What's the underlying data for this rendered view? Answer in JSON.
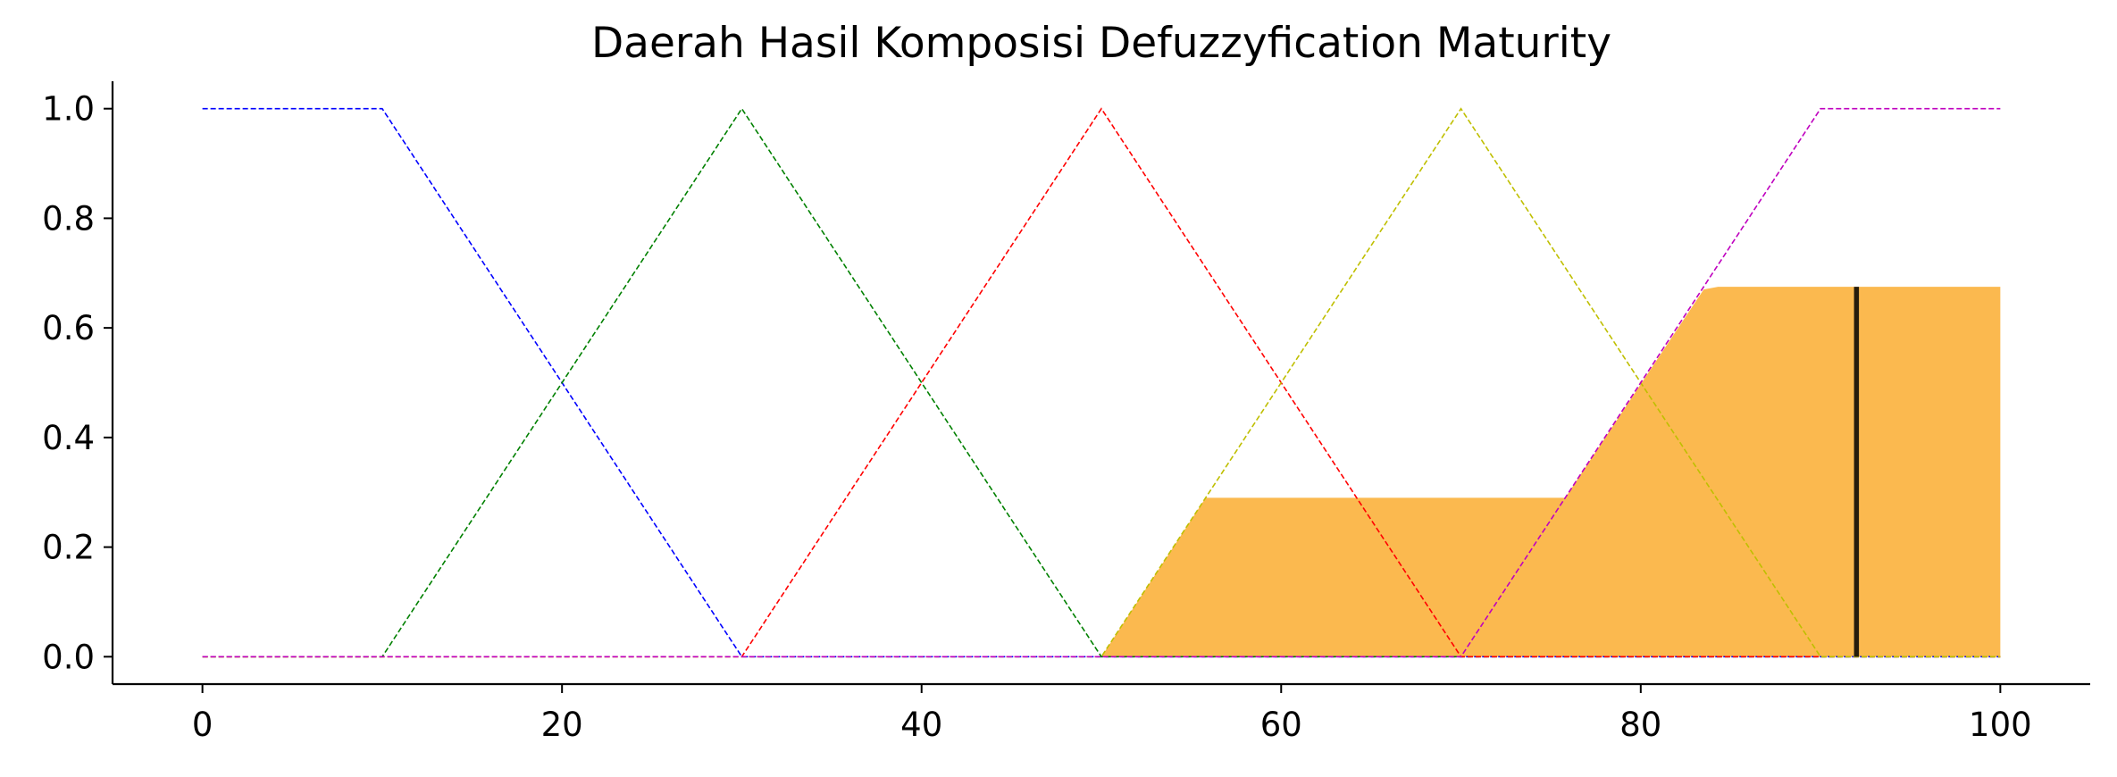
{
  "chart_data": {
    "type": "line",
    "title": "Daerah Hasil Komposisi Defuzzyfication Maturity",
    "xlabel": "",
    "ylabel": "",
    "xlim": [
      -5,
      105
    ],
    "ylim": [
      -0.05,
      1.05
    ],
    "x_ticks": [
      0,
      20,
      40,
      60,
      80,
      100
    ],
    "x_tick_labels": [
      "0",
      "20",
      "40",
      "60",
      "80",
      "100"
    ],
    "y_ticks": [
      0.0,
      0.2,
      0.4,
      0.6,
      0.8,
      1.0
    ],
    "y_tick_labels": [
      "0.0",
      "0.2",
      "0.4",
      "0.6",
      "0.8",
      "1.0"
    ],
    "grid": false,
    "legend": "none",
    "series": [
      {
        "color": "#0000ff",
        "style": "dashed",
        "points": [
          [
            0,
            1
          ],
          [
            10,
            1
          ],
          [
            30,
            0
          ],
          [
            100,
            0
          ]
        ]
      },
      {
        "color": "#008000",
        "style": "dashed",
        "points": [
          [
            0,
            0
          ],
          [
            10,
            0
          ],
          [
            30,
            1
          ],
          [
            50,
            0
          ],
          [
            100,
            0
          ]
        ]
      },
      {
        "color": "#ff0000",
        "style": "dashed",
        "points": [
          [
            0,
            0
          ],
          [
            30,
            0
          ],
          [
            50,
            1
          ],
          [
            70,
            0
          ],
          [
            100,
            0
          ]
        ]
      },
      {
        "color": "#bfbf00",
        "style": "dashed",
        "points": [
          [
            0,
            0
          ],
          [
            50,
            0
          ],
          [
            70,
            1
          ],
          [
            90,
            0
          ],
          [
            100,
            0
          ]
        ]
      },
      {
        "color": "#bf00bf",
        "style": "dashed",
        "points": [
          [
            0,
            0
          ],
          [
            70,
            0
          ],
          [
            90,
            1
          ],
          [
            100,
            1
          ]
        ]
      }
    ],
    "aggregated_area": {
      "color": "#fbb13c",
      "points": [
        [
          50,
          0
        ],
        [
          55.8,
          0.29
        ],
        [
          75.8,
          0.29
        ],
        [
          83.5,
          0.67
        ],
        [
          84.3,
          0.675
        ],
        [
          100,
          0.675
        ],
        [
          100,
          0
        ]
      ]
    },
    "defuzzified_line": {
      "color": "#000000",
      "x": 92,
      "ymin": 0,
      "ymax": 0.675
    }
  }
}
